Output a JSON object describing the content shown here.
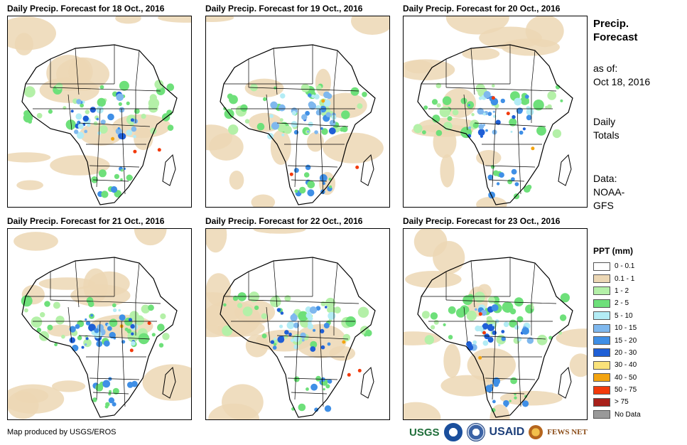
{
  "panels": [
    {
      "title": "Daily Precip. Forecast for 18 Oct., 2016"
    },
    {
      "title": "Daily Precip. Forecast for 19 Oct., 2016"
    },
    {
      "title": "Daily Precip. Forecast for 20 Oct., 2016"
    },
    {
      "title": "Daily Precip. Forecast for 21 Oct., 2016"
    },
    {
      "title": "Daily Precip. Forecast for 22 Oct., 2016"
    },
    {
      "title": "Daily Precip. Forecast for 23 Oct., 2016"
    }
  ],
  "sidebar": {
    "title_line1": "Precip.",
    "title_line2": "Forecast",
    "asof_label": "as of:",
    "asof_date": "Oct 18, 2016",
    "daily_line1": "Daily",
    "daily_line2": "Totals",
    "data_line1": "Data:",
    "data_line2": "NOAA-",
    "data_line3": "GFS"
  },
  "legend": {
    "title": "PPT (mm)",
    "items": [
      {
        "label": "0 - 0.1",
        "color": "#ffffff"
      },
      {
        "label": "0.1 - 1",
        "color": "#ecd7b4"
      },
      {
        "label": "1 - 2",
        "color": "#b4f0a8"
      },
      {
        "label": "2 - 5",
        "color": "#6ee07a"
      },
      {
        "label": "5 - 10",
        "color": "#b3ecf5"
      },
      {
        "label": "10 - 15",
        "color": "#7fb8ee"
      },
      {
        "label": "15 - 20",
        "color": "#3f8fe6"
      },
      {
        "label": "20 - 30",
        "color": "#1f5fd6"
      },
      {
        "label": "30 - 40",
        "color": "#f9e27a"
      },
      {
        "label": "40 - 50",
        "color": "#f3a410"
      },
      {
        "label": "50 - 75",
        "color": "#f23a0c"
      },
      {
        "label": "> 75",
        "color": "#a8201a"
      },
      {
        "label": "No Data",
        "color": "#999999"
      }
    ]
  },
  "footer": {
    "credit": "Map produced by USGS/EROS"
  },
  "logos": {
    "usgs": "USGS",
    "usaid": "USAID",
    "fewsnet": "FEWS NET"
  }
}
